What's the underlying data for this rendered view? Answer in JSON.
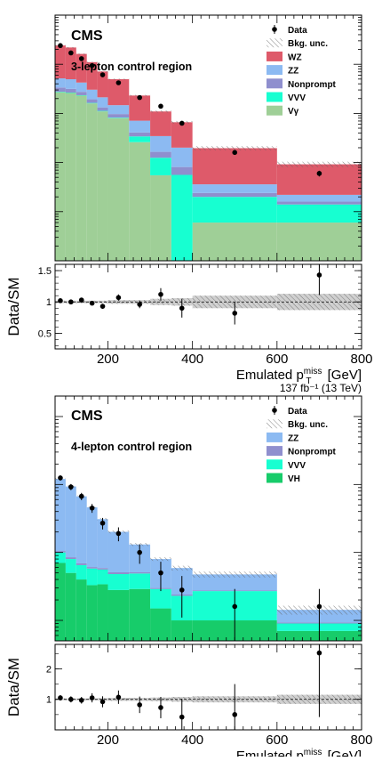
{
  "chart_data": [
    {
      "type": "bar",
      "stacked": true,
      "log_scale_y": true,
      "ylim": [
        1,
        100000
      ],
      "xlim": [
        75,
        800
      ],
      "experiment_label": "CMS",
      "region_label": "3-lepton control region",
      "luminosity_label": "",
      "legend_placement": "top-right",
      "bin_edges": [
        75,
        100,
        125,
        150,
        175,
        200,
        250,
        300,
        350,
        400,
        600,
        800
      ],
      "series": [
        {
          "name": "Vγ",
          "color": "#9fcf97",
          "values": [
            2700,
            2600,
            2300,
            1600,
            1100,
            800,
            260,
            55,
            1,
            6,
            6
          ]
        },
        {
          "name": "VVV",
          "color": "#17ffd1",
          "values": [
            60,
            55,
            45,
            35,
            25,
            20,
            80,
            70,
            55,
            14,
            8
          ]
        },
        {
          "name": "Nonprompt",
          "color": "#8f8fce",
          "values": [
            600,
            500,
            400,
            300,
            200,
            150,
            70,
            40,
            25,
            4,
            2
          ]
        },
        {
          "name": "ZZ",
          "color": "#8cbaf2",
          "values": [
            1800,
            1800,
            1500,
            1100,
            800,
            500,
            300,
            180,
            120,
            12,
            6
          ]
        },
        {
          "name": "WZ",
          "color": "#de5a6a",
          "values": [
            19000,
            17000,
            12000,
            8000,
            5000,
            3500,
            1600,
            750,
            460,
            160,
            70
          ]
        }
      ],
      "data_points": {
        "name": "Data",
        "x": [
          87.5,
          112.5,
          137.5,
          162.5,
          187.5,
          225,
          275,
          325,
          375,
          500,
          700
        ],
        "y": [
          24000,
          17000,
          13000,
          9400,
          6100,
          4200,
          2100,
          1400,
          630,
          160,
          60
        ],
        "yerr": [
          160,
          130,
          115,
          97,
          78,
          65,
          46,
          37,
          25,
          13,
          8
        ]
      },
      "background_uncertainty": {
        "name": "Bkg. unc."
      },
      "ratio": {
        "ylabel": "Data/SM",
        "ylim": [
          0.25,
          1.6
        ],
        "ticks": [
          "0.5",
          "1",
          "1.5"
        ],
        "values": [
          1.02,
          1.0,
          1.03,
          0.98,
          0.93,
          1.07,
          0.96,
          1.12,
          0.9,
          0.82,
          1.43
        ],
        "err": [
          0.02,
          0.03,
          0.03,
          0.03,
          0.04,
          0.05,
          0.06,
          0.1,
          0.15,
          0.18,
          0.32
        ],
        "band": [
          0.02,
          0.02,
          0.02,
          0.02,
          0.02,
          0.03,
          0.03,
          0.05,
          0.06,
          0.1,
          0.13
        ]
      },
      "xlabel": "Emulated p",
      "xlabel_sub": "T",
      "xlabel_sup": "miss",
      "xlabel_unit": "[GeV]",
      "xticks": [
        "200",
        "400",
        "600",
        "800"
      ]
    },
    {
      "type": "bar",
      "stacked": true,
      "log_scale_y": true,
      "ylim": [
        0.5,
        2000
      ],
      "xlim": [
        75,
        800
      ],
      "experiment_label": "CMS",
      "region_label": "4-lepton control region",
      "luminosity_label": "137 fb⁻¹ (13 TeV)",
      "legend_placement": "top-right",
      "bin_edges": [
        75,
        100,
        125,
        150,
        175,
        200,
        250,
        300,
        350,
        400,
        600,
        800
      ],
      "series": [
        {
          "name": "VH",
          "color": "#17cc6a",
          "values": [
            7,
            5,
            4,
            3.3,
            3.4,
            2.8,
            2.9,
            1.5,
            1.0,
            1.0,
            0.7
          ]
        },
        {
          "name": "VVV",
          "color": "#17ffd1",
          "values": [
            3,
            3,
            2.5,
            2.5,
            2.2,
            2,
            2,
            1.4,
            1.3,
            1.7,
            0.2
          ]
        },
        {
          "name": "Nonprompt",
          "color": "#8f8fce",
          "values": [
            0.5,
            0.5,
            0.4,
            0.3,
            0.3,
            0.3,
            0.2,
            0.1,
            0.1,
            0.05,
            0.03
          ]
        },
        {
          "name": "ZZ",
          "color": "#8cbaf2",
          "values": [
            110,
            85,
            60,
            40,
            25,
            15,
            8,
            5,
            3.5,
            2,
            0.5
          ]
        }
      ],
      "data_points": {
        "name": "Data",
        "x": [
          87.5,
          112.5,
          137.5,
          162.5,
          187.5,
          225,
          275,
          325,
          375,
          500,
          700
        ],
        "y": [
          125,
          92,
          67,
          45,
          27,
          19,
          10,
          5,
          2.8,
          1.6,
          1.6
        ],
        "yerr": [
          11,
          9.6,
          8.2,
          6.7,
          5.2,
          4.4,
          3.2,
          2.3,
          1.7,
          1.3,
          1.3
        ]
      },
      "background_uncertainty": {
        "name": "Bkg. unc."
      },
      "ratio": {
        "ylabel": "Data/SM",
        "ylim": [
          0,
          2.8
        ],
        "ticks": [
          "1",
          "2"
        ],
        "values": [
          1.05,
          1.0,
          0.97,
          1.05,
          0.92,
          1.07,
          0.82,
          0.73,
          0.42,
          0.5,
          2.52
        ],
        "err": [
          0.09,
          0.1,
          0.11,
          0.15,
          0.18,
          0.22,
          0.27,
          0.35,
          0.6,
          1.0,
          2.1
        ],
        "band": [
          0.03,
          0.03,
          0.03,
          0.03,
          0.04,
          0.05,
          0.05,
          0.06,
          0.08,
          0.1,
          0.15
        ]
      },
      "xlabel": "Emulated p",
      "xlabel_sub": "T",
      "xlabel_sup": "miss",
      "xlabel_unit": "[GeV]",
      "xticks": [
        "200",
        "400",
        "600",
        "800"
      ]
    }
  ]
}
